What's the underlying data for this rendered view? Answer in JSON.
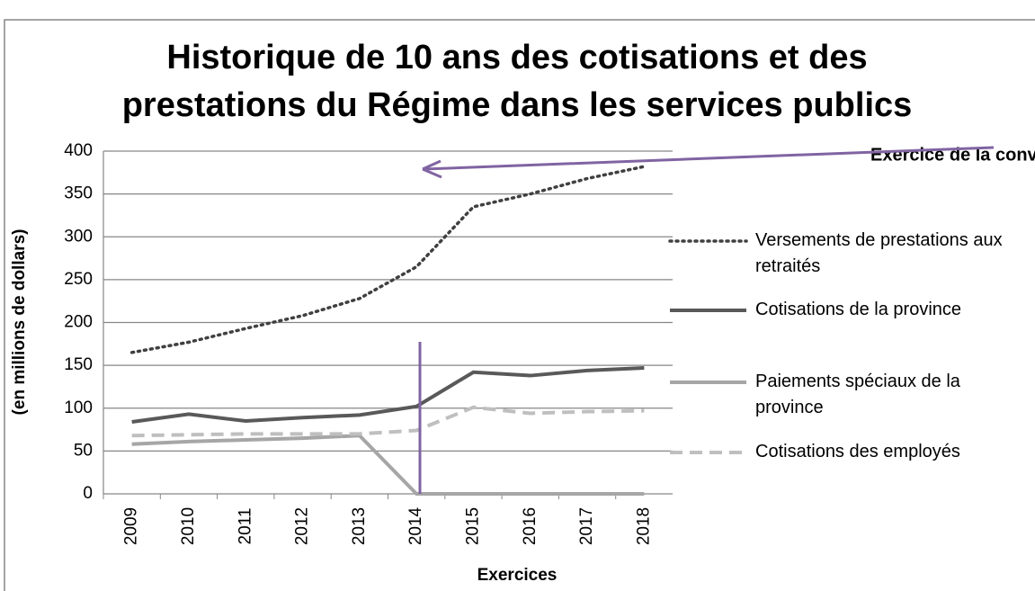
{
  "chart_data": {
    "type": "line",
    "title": "Historique de 10 ans des cotisations et des prestations du Régime dans les services publics",
    "y_label": "(en millions de dollars)",
    "x_label": "Exercices",
    "annotation": "Exercice de la conversion",
    "categories": [
      "2009",
      "2010",
      "2011",
      "2012",
      "2013",
      "2014",
      "2015",
      "2016",
      "2017",
      "2018"
    ],
    "ylim": [
      0,
      400
    ],
    "yticks": [
      0,
      50,
      100,
      150,
      200,
      250,
      300,
      350,
      400
    ],
    "grid": true,
    "legend": "right",
    "series": [
      {
        "name": "Versements de prestations aux retraités",
        "color": "#404040",
        "style": "dotted",
        "values": [
          165,
          177,
          193,
          208,
          228,
          265,
          335,
          350,
          368,
          382
        ]
      },
      {
        "name": "Cotisations de la province",
        "color": "#595959",
        "style": "solid",
        "values": [
          84,
          93,
          85,
          89,
          92,
          102,
          142,
          138,
          144,
          147
        ]
      },
      {
        "name": "Paiements spéciaux de la province",
        "color": "#a6a6a6",
        "style": "solid",
        "values": [
          58,
          61,
          63,
          65,
          68,
          0,
          0,
          0,
          0,
          0
        ]
      },
      {
        "name": "Cotisations des employés",
        "color": "#bfbfbf",
        "style": "dashed",
        "values": [
          68,
          69,
          70,
          70,
          70,
          74,
          101,
          94,
          96,
          97
        ]
      }
    ]
  }
}
